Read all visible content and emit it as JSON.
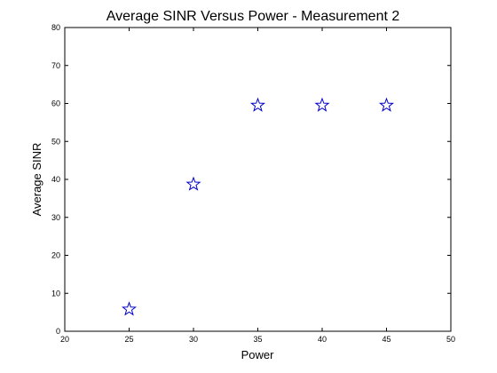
{
  "chart_data": {
    "type": "scatter",
    "title": "Average SINR Versus Power - Measurement 2",
    "xlabel": "Power",
    "ylabel": "Average SINR",
    "xlim": [
      20,
      50
    ],
    "ylim": [
      0,
      80
    ],
    "xticks": [
      20,
      25,
      30,
      35,
      40,
      45,
      50
    ],
    "yticks": [
      0,
      10,
      20,
      30,
      40,
      50,
      60,
      70,
      80
    ],
    "grid": false,
    "marker": "star",
    "marker_color": "#0000cc",
    "series": [
      {
        "name": "Average SINR",
        "x": [
          25,
          30,
          35,
          40,
          45
        ],
        "y": [
          5.8,
          38.7,
          59.5,
          59.5,
          59.5
        ]
      }
    ]
  }
}
